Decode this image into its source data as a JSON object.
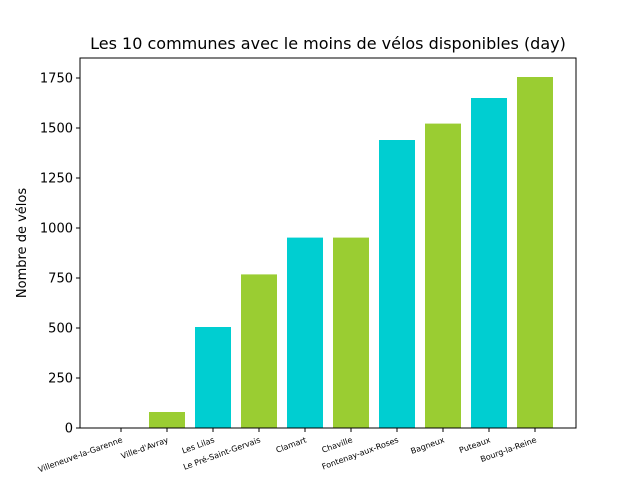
{
  "chart_data": {
    "type": "bar",
    "title": "Les 10 communes avec le moins de vélos disponibles (day)",
    "xlabel": "",
    "ylabel": "Nombre de vélos",
    "categories": [
      "Villeneuve-la-Garenne",
      "Ville-d'Avray",
      "Les Lilas",
      "Le Pré-Saint-Gervais",
      "Clamart",
      "Chaville",
      "Fontenay-aux-Roses",
      "Bagneux",
      "Puteaux",
      "Bourg-la-Reine"
    ],
    "values": [
      0,
      80,
      505,
      768,
      952,
      952,
      1440,
      1522,
      1650,
      1755
    ],
    "bar_colors": [
      "#00ced1",
      "#9acd32",
      "#00ced1",
      "#9acd32",
      "#00ced1",
      "#9acd32",
      "#00ced1",
      "#9acd32",
      "#00ced1",
      "#9acd32"
    ],
    "ylim": [
      0,
      1850
    ],
    "yticks": [
      0,
      250,
      500,
      750,
      1000,
      1250,
      1500,
      1750
    ],
    "ytick_labels": [
      "0",
      "250",
      "500",
      "750",
      "1000",
      "1250",
      "1500",
      "1750"
    ],
    "grid": false,
    "legend": "none"
  }
}
